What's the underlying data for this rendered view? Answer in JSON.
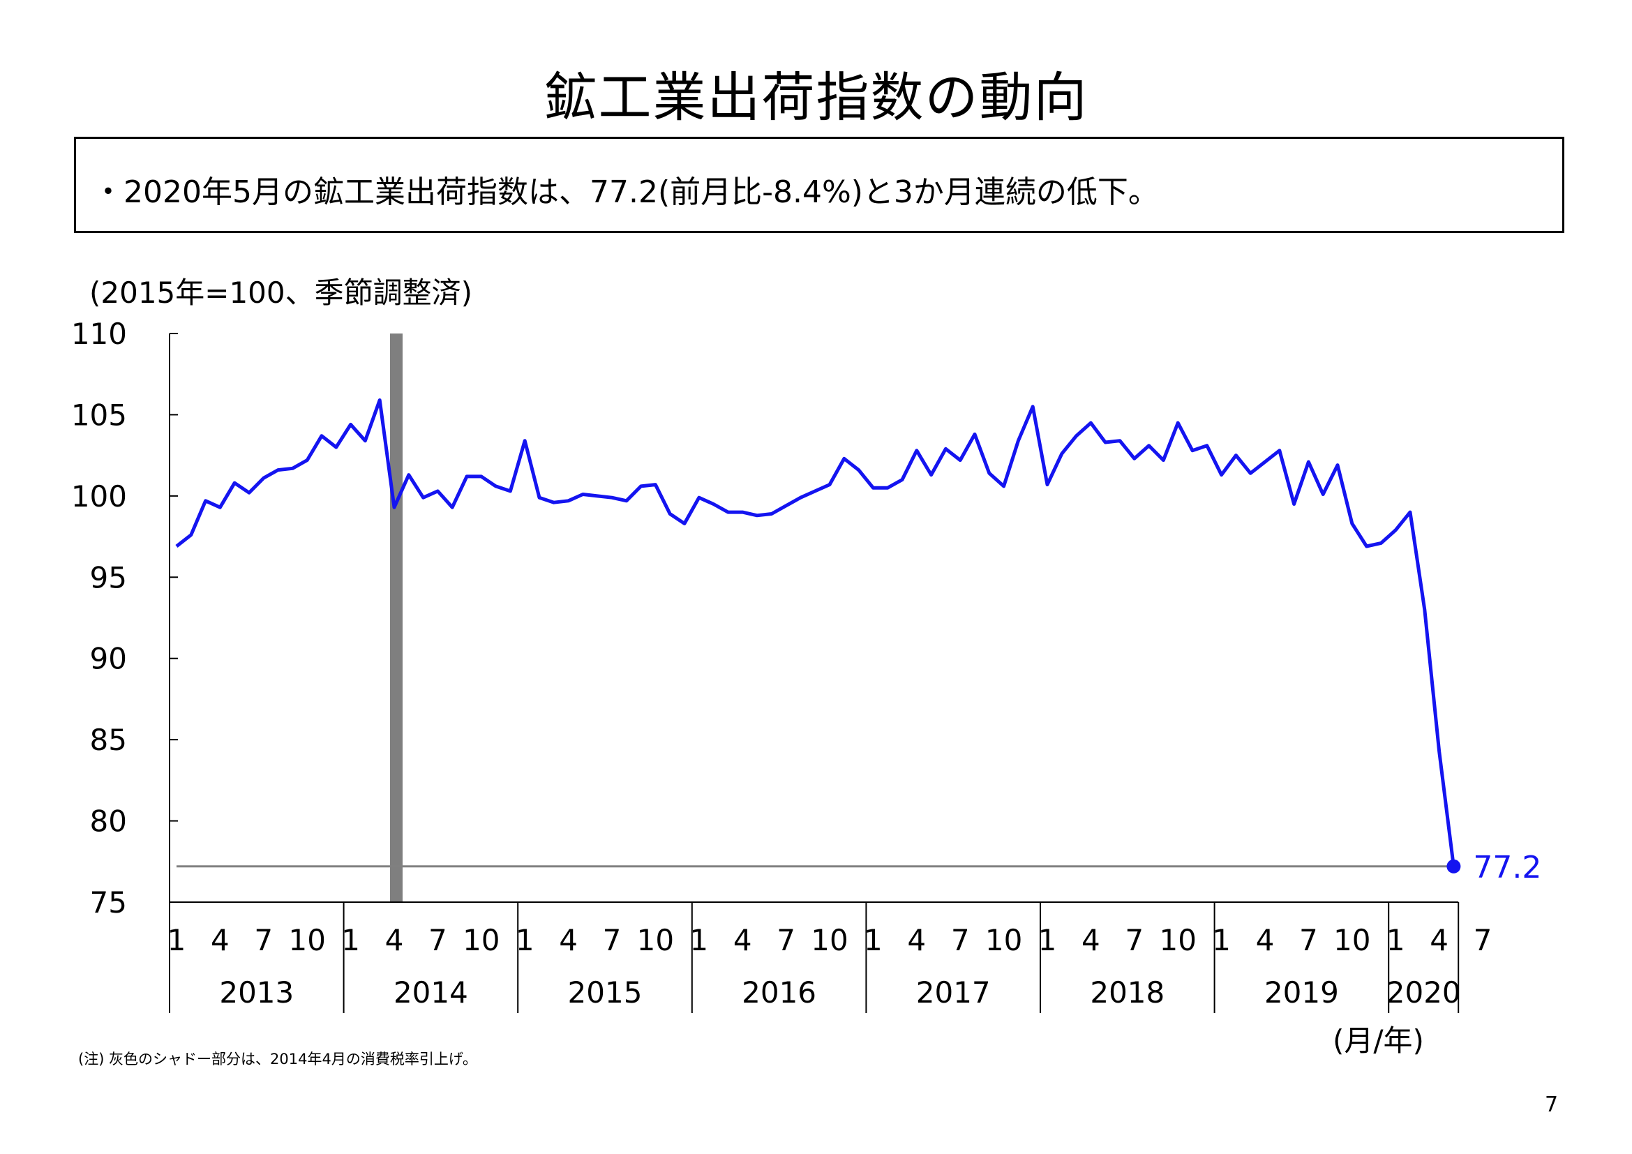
{
  "page": {
    "title": "鉱工業出荷指数の動向",
    "summary": "・2020年5月の鉱工業出荷指数は、77.2(前月比-8.4%)と3か月連続の低下。",
    "note": "(注) 灰色のシャドー部分は、2014年4月の消費税率引上げ。",
    "page_number": "7"
  },
  "chart_data": {
    "type": "line",
    "title": "鉱工業出荷指数の動向",
    "ylabel": "(2015年=100、季節調整済)",
    "xlabel": "(月/年)",
    "ylim": [
      75,
      110
    ],
    "yticks": [
      110,
      105,
      100,
      95,
      90,
      85,
      80,
      75
    ],
    "start": "2013-01",
    "month_labels": [
      "1",
      "4",
      "7",
      "10"
    ],
    "years": [
      "2013",
      "2014",
      "2015",
      "2016",
      "2017",
      "2018",
      "2019",
      "2020"
    ],
    "series": [
      {
        "color": "#1414f0",
        "values": [
          96.9,
          97.6,
          99.7,
          99.3,
          100.8,
          100.2,
          101.1,
          101.6,
          101.7,
          102.2,
          103.7,
          103.0,
          104.4,
          103.4,
          105.9,
          99.3,
          101.3,
          99.9,
          100.3,
          99.3,
          101.2,
          101.2,
          100.6,
          100.3,
          103.4,
          99.9,
          99.6,
          99.7,
          100.1,
          100.0,
          99.9,
          99.7,
          100.6,
          100.7,
          98.9,
          98.3,
          99.9,
          99.5,
          99.0,
          99.0,
          98.8,
          98.9,
          99.4,
          99.9,
          100.3,
          100.7,
          102.3,
          101.6,
          100.5,
          100.5,
          101.0,
          102.8,
          101.3,
          102.9,
          102.2,
          103.8,
          101.4,
          100.6,
          103.4,
          105.5,
          100.7,
          102.6,
          103.7,
          104.5,
          103.3,
          103.4,
          102.3,
          103.1,
          102.2,
          104.5,
          102.8,
          103.1,
          101.3,
          102.5,
          101.4,
          102.1,
          102.8,
          99.5,
          102.1,
          100.1,
          101.9,
          98.3,
          96.9,
          97.1,
          97.9,
          99.0,
          93.0,
          84.3,
          77.2
        ]
      }
    ],
    "reference_line": 77.2,
    "last_value_label": "77.2",
    "shaded_period": "2014-04",
    "colors": {
      "line": "#1414f0",
      "shade": "#7f7f7f",
      "reference": "#808080"
    }
  }
}
